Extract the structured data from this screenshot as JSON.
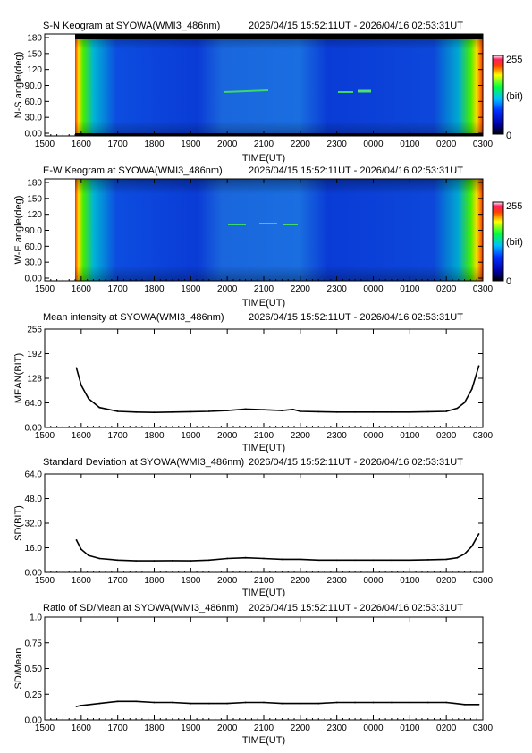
{
  "x_ticks": [
    "1500",
    "1600",
    "1700",
    "1800",
    "1900",
    "2000",
    "2100",
    "2200",
    "2300",
    "0000",
    "0100",
    "0200",
    "0300"
  ],
  "keograms": [
    {
      "title": "S-N Keogram at SYOWA(WMI3_486nm)",
      "period": "2026/04/15 15:52:11UT - 2026/04/16 02:53:31UT",
      "ylabel": "N-S angle(deg)",
      "xlabel": "TIME(UT)",
      "y_ticks": [
        "180",
        "150",
        "120",
        "90.0",
        "60.0",
        "30.0",
        "0.00"
      ],
      "colorbar": {
        "max_label": "255",
        "unit_label": "(bit)",
        "min_label": "0"
      }
    },
    {
      "title": "E-W Keogram at SYOWA(WMI3_486nm)",
      "period": "2026/04/15 15:52:11UT - 2026/04/16 02:53:31UT",
      "ylabel": "W-E angle(deg)",
      "xlabel": "TIME(UT)",
      "y_ticks": [
        "180",
        "150",
        "120",
        "90.0",
        "60.0",
        "30.0",
        "0.00"
      ],
      "colorbar": {
        "max_label": "255",
        "unit_label": "(bit)",
        "min_label": "0"
      }
    }
  ],
  "chart_data": [
    {
      "type": "heatmap",
      "title": "S-N Keogram at SYOWA(WMI3_486nm)",
      "xlabel": "TIME(UT)",
      "ylabel": "N-S angle(deg)",
      "xlim": [
        15.0,
        27.0
      ],
      "ylim": [
        0,
        180
      ],
      "colorbar_range": [
        0,
        255
      ],
      "data_range": [
        "15:52:11",
        "02:53:31"
      ],
      "features": {
        "background_value": 40,
        "edge_brightening_near_start_and_end": true,
        "bright_arcs": [
          {
            "time": 20.1,
            "angle": 78
          },
          {
            "time": 23.3,
            "angle": 78
          },
          {
            "time": 23.85,
            "angle": 80
          }
        ]
      }
    },
    {
      "type": "heatmap",
      "title": "E-W Keogram at SYOWA(WMI3_486nm)",
      "xlabel": "TIME(UT)",
      "ylabel": "W-E angle(deg)",
      "xlim": [
        15.0,
        27.0
      ],
      "ylim": [
        0,
        180
      ],
      "colorbar_range": [
        0,
        255
      ],
      "data_range": [
        "15:52:11",
        "02:53:31"
      ],
      "features": {
        "background_value": 40,
        "edge_brightening_near_start_and_end": true,
        "bright_patches": [
          {
            "time": 20.4,
            "angle": 100
          },
          {
            "time": 21.1,
            "angle": 102
          },
          {
            "time": 21.8,
            "angle": 100
          }
        ]
      }
    },
    {
      "type": "line",
      "title": "Mean intensity at SYOWA(WMI3_486nm)",
      "period": "2026/04/15 15:52:11UT - 2026/04/16 02:53:31UT",
      "xlabel": "TIME(UT)",
      "ylabel": "MEAN(BIT)",
      "xlim": [
        15.0,
        27.0
      ],
      "ylim": [
        0,
        256
      ],
      "y_ticks": [
        "256",
        "192",
        "128",
        "64.0",
        "0.00"
      ],
      "series": [
        {
          "x": [
            15.87,
            16.0,
            16.2,
            16.5,
            17.0,
            17.5,
            18.0,
            18.5,
            19.0,
            19.5,
            20.0,
            20.5,
            21.0,
            21.5,
            21.8,
            22.0,
            22.5,
            23.0,
            23.5,
            24.0,
            24.5,
            25.0,
            25.5,
            26.0,
            26.3,
            26.5,
            26.7,
            26.89
          ],
          "y": [
            155,
            110,
            75,
            52,
            42,
            40,
            39,
            40,
            41,
            42,
            44,
            48,
            46,
            44,
            47,
            42,
            41,
            40,
            40,
            40,
            40,
            40,
            41,
            42,
            50,
            65,
            100,
            160
          ]
        }
      ]
    },
    {
      "type": "line",
      "title": "Standard Deviation at SYOWA(WMI3_486nm)",
      "period": "2026/04/15 15:52:11UT - 2026/04/16 02:53:31UT",
      "xlabel": "TIME(UT)",
      "ylabel": "SD(BIT)",
      "xlim": [
        15.0,
        27.0
      ],
      "ylim": [
        0,
        64
      ],
      "y_ticks": [
        "64.0",
        "48.0",
        "32.0",
        "16.0",
        "0.00"
      ],
      "series": [
        {
          "x": [
            15.87,
            16.0,
            16.2,
            16.5,
            17.0,
            17.5,
            18.0,
            18.5,
            19.0,
            19.5,
            20.0,
            20.5,
            21.0,
            21.5,
            22.0,
            22.5,
            23.0,
            23.5,
            24.0,
            24.5,
            25.0,
            25.5,
            26.0,
            26.3,
            26.5,
            26.7,
            26.89
          ],
          "y": [
            21,
            15,
            11,
            9,
            8,
            7.5,
            7.5,
            7.6,
            7.5,
            8,
            9,
            9.5,
            9,
            8.5,
            8.5,
            8,
            8,
            8,
            8,
            8,
            8,
            8.2,
            8.5,
            9.5,
            12,
            17,
            25
          ]
        }
      ]
    },
    {
      "type": "line",
      "title": "Ratio of SD/Mean at SYOWA(WMI3_486nm)",
      "period": "2026/04/15 15:52:11UT - 2026/04/16 02:53:31UT",
      "xlabel": "TIME(UT)",
      "ylabel": "SD/Mean",
      "xlim": [
        15.0,
        27.0
      ],
      "ylim": [
        0,
        1.0
      ],
      "y_ticks": [
        "1.0",
        "0.75",
        "0.50",
        "0.25",
        "0.00"
      ],
      "series": [
        {
          "x": [
            15.87,
            16.0,
            16.5,
            17.0,
            17.5,
            18.0,
            18.5,
            19.0,
            19.5,
            20.0,
            20.5,
            21.0,
            21.5,
            22.0,
            22.5,
            23.0,
            23.5,
            24.0,
            24.5,
            25.0,
            25.5,
            26.0,
            26.5,
            26.89
          ],
          "y": [
            0.13,
            0.14,
            0.16,
            0.18,
            0.18,
            0.17,
            0.17,
            0.16,
            0.16,
            0.16,
            0.17,
            0.17,
            0.16,
            0.16,
            0.16,
            0.17,
            0.17,
            0.17,
            0.17,
            0.17,
            0.17,
            0.17,
            0.15,
            0.15
          ]
        }
      ]
    }
  ]
}
